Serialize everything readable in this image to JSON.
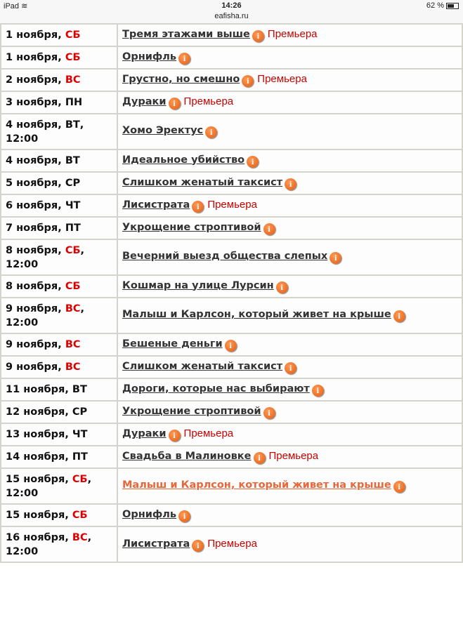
{
  "status_bar": {
    "device": "iPad",
    "wifi_icon": "wifi-icon",
    "time": "14:26",
    "url": "eafisha.ru",
    "battery": "62 %",
    "battery_level": 0.62
  },
  "colors": {
    "weekend": "#dd0000",
    "link": "#333333",
    "link_active": "#e8673a",
    "premiere": "#cc0000",
    "info_icon": "#f07020"
  },
  "premiere_label": "Премьера",
  "rows": [
    {
      "date": "1 ноября, ",
      "day": "СБ",
      "red": true,
      "time": "",
      "title": "Тремя этажами выше",
      "premiere": true
    },
    {
      "date": "1 ноября, ",
      "day": "СБ",
      "red": true,
      "time": "",
      "title": "Орнифль",
      "premiere": false
    },
    {
      "date": "2 ноября, ",
      "day": "ВС",
      "red": true,
      "time": "",
      "title": "Грустно, но смешно",
      "premiere": true
    },
    {
      "date": "3 ноября, ",
      "day": "ПН",
      "red": false,
      "time": "",
      "title": "Дураки",
      "premiere": true
    },
    {
      "date": "4 ноября, ",
      "day": "ВТ",
      "red": false,
      "time": "12:00",
      "title": "Хомо Эректус",
      "premiere": false
    },
    {
      "date": "4 ноября, ",
      "day": "ВТ",
      "red": false,
      "time": "",
      "title": "Идеальное убийство",
      "premiere": false
    },
    {
      "date": "5 ноября, ",
      "day": "СР",
      "red": false,
      "time": "",
      "title": "Слишком женатый таксист",
      "premiere": false
    },
    {
      "date": "6 ноября, ",
      "day": "ЧТ",
      "red": false,
      "time": "",
      "title": "Лисистрата",
      "premiere": true
    },
    {
      "date": "7 ноября, ",
      "day": "ПТ",
      "red": false,
      "time": "",
      "title": "Укрощение строптивой",
      "premiere": false
    },
    {
      "date": "8 ноября, ",
      "day": "СБ",
      "red": true,
      "time": "12:00",
      "title": "Вечерний выезд общества слепых",
      "premiere": false
    },
    {
      "date": "8 ноября, ",
      "day": "СБ",
      "red": true,
      "time": "",
      "title": "Кошмар на улице Лурсин",
      "premiere": false
    },
    {
      "date": "9 ноября, ",
      "day": "ВС",
      "red": true,
      "time": "12:00",
      "title": "Малыш и Карлсон, который живет на крыше",
      "premiere": false
    },
    {
      "date": "9 ноября, ",
      "day": "ВС",
      "red": true,
      "time": "",
      "title": "Бешеные деньги",
      "premiere": false
    },
    {
      "date": "9 ноября, ",
      "day": "ВС",
      "red": true,
      "time": "",
      "title": "Слишком женатый таксист",
      "premiere": false
    },
    {
      "date": "11 ноября, ",
      "day": "ВТ",
      "red": false,
      "time": "",
      "title": "Дороги, которые нас выбирают",
      "premiere": false
    },
    {
      "date": "12 ноября, ",
      "day": "СР",
      "red": false,
      "time": "",
      "title": "Укрощение строптивой",
      "premiere": false
    },
    {
      "date": "13 ноября, ",
      "day": "ЧТ",
      "red": false,
      "time": "",
      "title": "Дураки",
      "premiere": true
    },
    {
      "date": "14 ноября, ",
      "day": "ПТ",
      "red": false,
      "time": "",
      "title": "Свадьба в Малиновке",
      "premiere": true
    },
    {
      "date": "15 ноября, ",
      "day": "СБ",
      "red": true,
      "time": "12:00",
      "title": "Малыш и Карлсон, который живет на крыше",
      "premiere": false,
      "highlighted": true
    },
    {
      "date": "15 ноября, ",
      "day": "СБ",
      "red": true,
      "time": "",
      "title": "Орнифль",
      "premiere": false
    },
    {
      "date": "16 ноября, ",
      "day": "ВС",
      "red": true,
      "time": "12:00",
      "title": "Лисистрата",
      "premiere": true
    }
  ]
}
